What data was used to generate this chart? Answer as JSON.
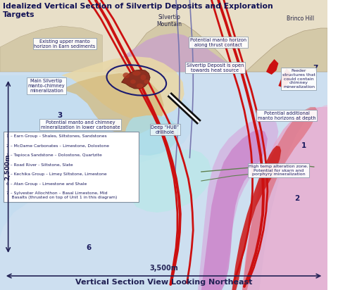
{
  "title": "Idealized Vertical Section of Silvertip Deposits and Exploration\nTargets",
  "subtitle": "Vertical Section View Looking Northeast",
  "bg_color": "#cddff0",
  "scale_h": "3,500m",
  "scale_v": "2,500m",
  "legend_items": [
    "1 – Earn Group – Shales, Siltstones, Sandstones",
    "2 – McDame Carbonates – Limestone, Dolostone",
    "3 – Tapioca Sandstone – Dolostone, Quartzite",
    "4 – Road River - Siltstone, Slate",
    "5 – Kechika Group – Limey Siltstone, Limestone",
    "6 – Atan Group – Limestone and Shale",
    "7 – Sylvester Allochthon – Basal Limestone, Mid\n    Basalts (thrusted on top of Unit 1 in this diagram)"
  ]
}
